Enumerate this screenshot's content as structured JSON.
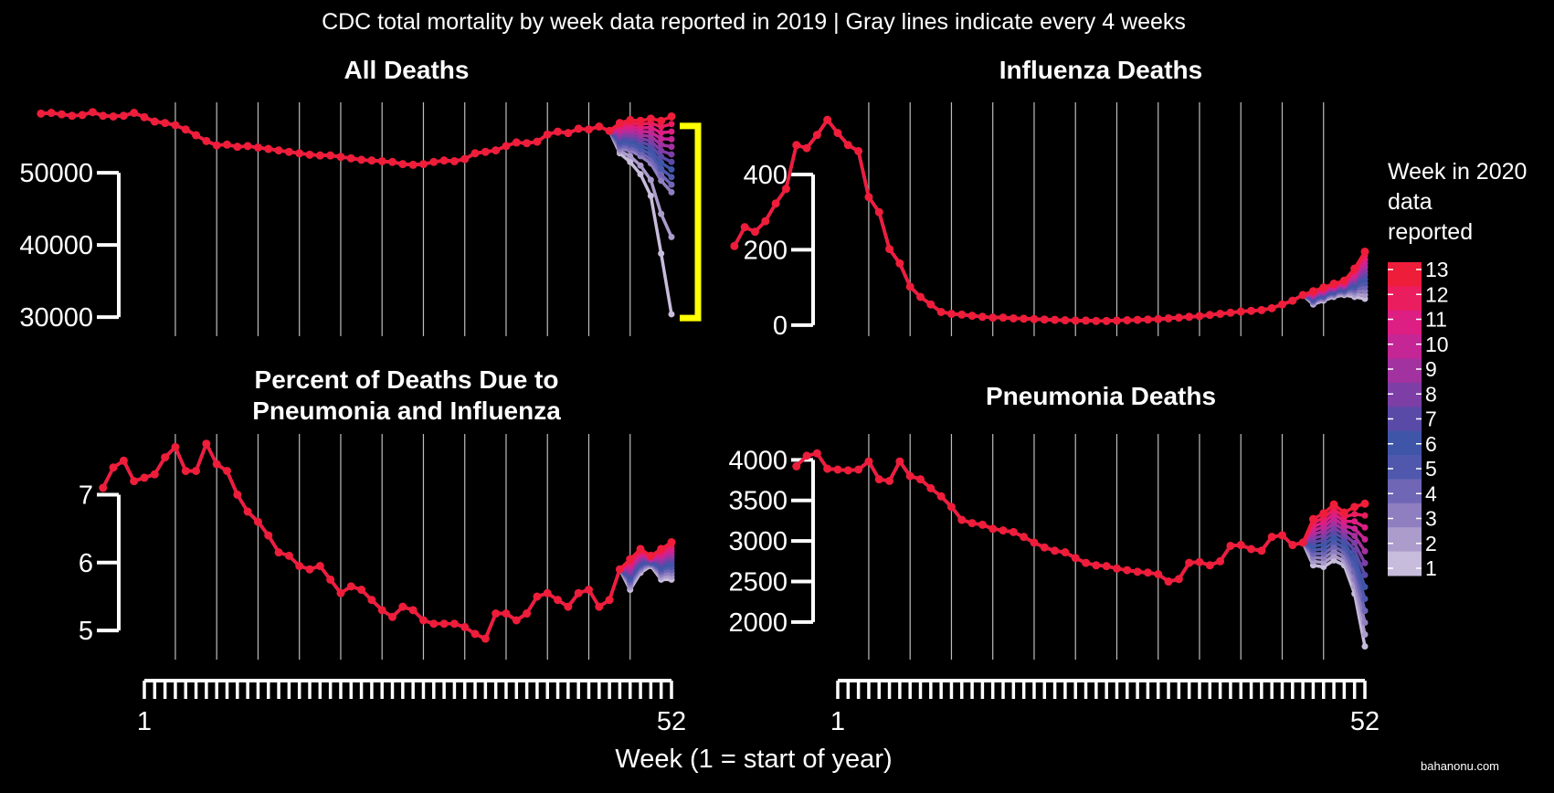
{
  "figure": {
    "title": "CDC total mortality by week data reported in 2019 | Gray lines indicate every 4 weeks",
    "xlabel": "Week (1 = start of year)",
    "credit": "bahanonu.com",
    "x_tick_labels": [
      "1",
      "52"
    ],
    "legend": {
      "title_lines": [
        "Week in 2020",
        "data",
        "reported"
      ],
      "labels": [
        "1",
        "2",
        "3",
        "4",
        "5",
        "6",
        "7",
        "8",
        "9",
        "10",
        "11",
        "12",
        "13"
      ],
      "colors": [
        "#c8bcdc",
        "#ab9ccc",
        "#8f7fc0",
        "#6f66b6",
        "#4f58ac",
        "#3f56a8",
        "#5a4aa8",
        "#7d3ea6",
        "#a232a0",
        "#c42696",
        "#dd1e82",
        "#ea1d5e",
        "#ee1d3a"
      ]
    }
  },
  "chart_data": [
    {
      "type": "line",
      "title": "All Deaths",
      "weeks": [
        1,
        52
      ],
      "gridline_every_weeks": 4,
      "y_ticks": [
        30000,
        40000,
        50000
      ],
      "ylim": [
        29000,
        59000
      ],
      "annotation": "yellow bracket spanning 30000-58000 at week 52",
      "series_final": {
        "name": "13",
        "values": [
          58200,
          58300,
          58100,
          57900,
          58000,
          58400,
          57900,
          57800,
          57900,
          58300,
          57700,
          57100,
          56900,
          56600,
          56000,
          55200,
          54400,
          53800,
          53900,
          53600,
          53700,
          53500,
          53300,
          53100,
          52900,
          52700,
          52500,
          52400,
          52400,
          52200,
          52000,
          51800,
          51700,
          51600,
          51500,
          51200,
          51100,
          51200,
          51500,
          51700,
          51600,
          51900,
          52700,
          52900,
          53100,
          53700,
          54200,
          54100,
          54300,
          55300,
          55700,
          55500,
          56100,
          56000,
          56400,
          55800,
          56900,
          57300,
          57200,
          57500,
          57200,
          57800
        ]
      },
      "series_week1_tail": {
        "name": "1",
        "values": [
          52700,
          51500,
          49800,
          46800,
          38800,
          30400
        ]
      },
      "series_week2_tail": {
        "name": "2",
        "values": [
          53000,
          52300,
          51000,
          49000,
          44300,
          41100
        ]
      },
      "series_week3_tail": {
        "name": "3",
        "values": [
          53300,
          53100,
          52300,
          51300,
          48900,
          47300
        ]
      }
    },
    {
      "type": "line",
      "title": "Influenza Deaths",
      "y_ticks": [
        0,
        200,
        400
      ],
      "ylim": [
        -10,
        560
      ],
      "series_final": {
        "name": "13",
        "values": [
          210,
          260,
          248,
          276,
          323,
          362,
          478,
          470,
          505,
          545,
          510,
          478,
          462,
          340,
          300,
          202,
          164,
          102,
          75,
          55,
          35,
          30,
          28,
          25,
          22,
          20,
          20,
          18,
          17,
          16,
          15,
          14,
          13,
          12,
          12,
          11,
          11,
          12,
          13,
          14,
          15,
          16,
          18,
          20,
          22,
          24,
          27,
          30,
          33,
          36,
          38,
          40,
          45,
          55,
          65,
          80,
          90,
          100,
          110,
          118,
          150,
          195
        ]
      },
      "series_week1_tail": {
        "name": "1",
        "values": [
          55,
          65,
          75,
          80,
          75,
          70
        ]
      }
    },
    {
      "type": "line",
      "title": "Percent of Deaths Due to Pneumonia and Influenza",
      "y_ticks": [
        5,
        6,
        7
      ],
      "ylim": [
        4.8,
        7.8
      ],
      "series_final": {
        "name": "13",
        "values": [
          7.1,
          7.4,
          7.5,
          7.2,
          7.25,
          7.3,
          7.55,
          7.7,
          7.35,
          7.35,
          7.75,
          7.45,
          7.35,
          7.0,
          6.75,
          6.6,
          6.4,
          6.15,
          6.1,
          5.95,
          5.9,
          5.95,
          5.75,
          5.55,
          5.65,
          5.6,
          5.45,
          5.3,
          5.2,
          5.35,
          5.3,
          5.15,
          5.1,
          5.1,
          5.1,
          5.05,
          4.95,
          4.88,
          5.25,
          5.25,
          5.15,
          5.25,
          5.5,
          5.55,
          5.45,
          5.35,
          5.55,
          5.6,
          5.35,
          5.45,
          5.9,
          6.05,
          6.2,
          6.1,
          6.2,
          6.3
        ]
      },
      "series_week1_tail": {
        "name": "1",
        "values": [
          5.6,
          5.85,
          5.95,
          5.75,
          5.75
        ]
      }
    },
    {
      "type": "line",
      "title": "Pneumonia Deaths",
      "y_ticks": [
        2000,
        2500,
        3000,
        3500,
        4000
      ],
      "ylim": [
        1650,
        4150
      ],
      "series_final": {
        "name": "13",
        "values": [
          3920,
          4050,
          4080,
          3890,
          3880,
          3870,
          3880,
          3980,
          3760,
          3740,
          3980,
          3800,
          3760,
          3650,
          3550,
          3420,
          3260,
          3220,
          3200,
          3150,
          3130,
          3110,
          3050,
          2980,
          2920,
          2880,
          2860,
          2790,
          2730,
          2700,
          2690,
          2660,
          2640,
          2620,
          2610,
          2590,
          2500,
          2530,
          2730,
          2740,
          2700,
          2750,
          2940,
          2950,
          2900,
          2880,
          3050,
          3070,
          2950,
          2980,
          3270,
          3340,
          3450,
          3350,
          3420,
          3460
        ]
      },
      "series_week1_tail": {
        "name": "1",
        "values": [
          2700,
          2680,
          2760,
          2700,
          2350,
          1700
        ]
      }
    }
  ]
}
